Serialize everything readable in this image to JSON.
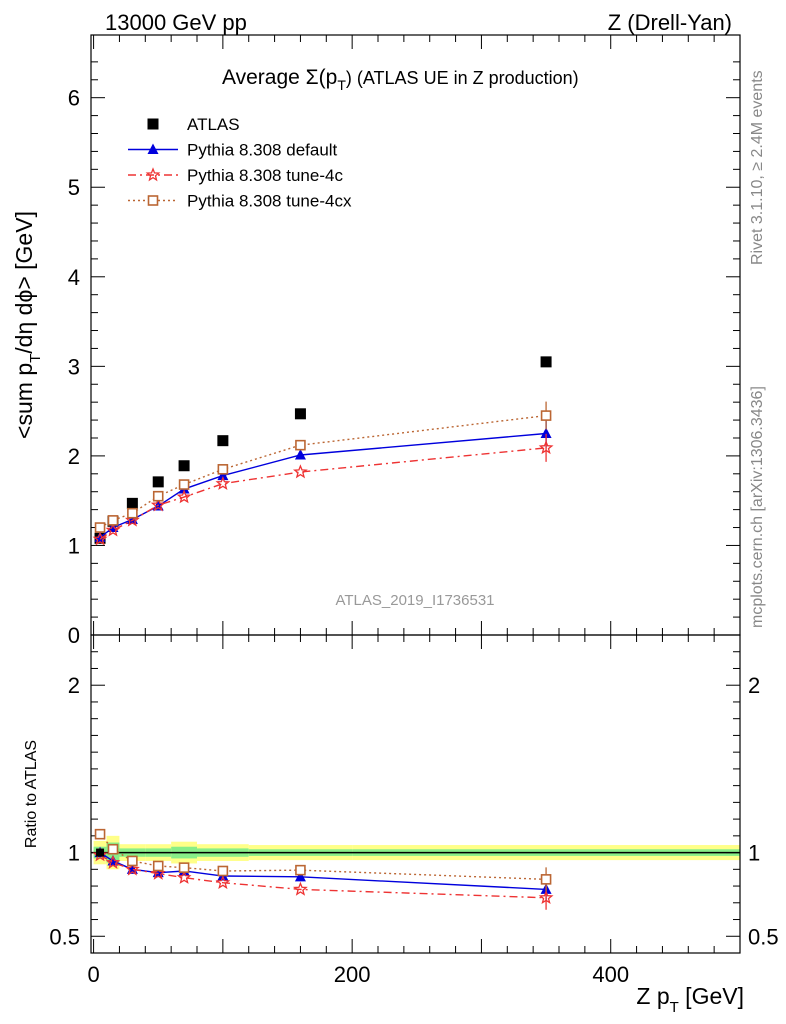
{
  "header": {
    "left": "13000 GeV pp",
    "right": "Z (Drell-Yan)"
  },
  "side": {
    "rivet": "Rivet 3.1.10, ≥ 2.4M events",
    "mcplots": "mcplots.cern.ch [arXiv:1306.3436]"
  },
  "chart_data": {
    "type": "scatter",
    "title": "Average Σ(p_T) (ATLAS UE in Z production)",
    "title_parts": {
      "lead": "Average ",
      "sigma": "Σ(p",
      "sub": "T",
      "tail": ") (ATLAS UE in Z production)"
    },
    "analysis_label": "ATLAS_2019_I1736531",
    "xlabel": "Z p_T [GeV]",
    "xlabel_parts": {
      "lead": "Z p",
      "sub": "T",
      "tail": " [GeV]"
    },
    "ylabel": "<sum p_T/dη dϕ> [GeV]",
    "ylabel_parts": {
      "lead": "<sum p",
      "sub": "T",
      "tail": "/dη dϕ> [GeV]"
    },
    "ratio_ylabel": "Ratio to ATLAS",
    "xlim": [
      -2,
      500
    ],
    "ylim": [
      0,
      6.7
    ],
    "ratio_ylim": [
      0.4,
      2.3
    ],
    "xticks": [
      "0",
      "200",
      "400"
    ],
    "yticks": [
      "0",
      "1",
      "2",
      "3",
      "4",
      "5",
      "6"
    ],
    "ratio_yticks": [
      "0.5",
      "1",
      "2"
    ],
    "legend_position": "top-left",
    "x": [
      5,
      15,
      30,
      50,
      70,
      100,
      160,
      350
    ],
    "xerr": [
      5,
      5,
      10,
      10,
      10,
      20,
      40,
      150
    ],
    "series": [
      {
        "name": "ATLAS",
        "color": "#000000",
        "marker": "square",
        "values": [
          1.08,
          1.27,
          1.47,
          1.71,
          1.89,
          2.17,
          2.47,
          3.05
        ]
      },
      {
        "name": "Pythia 8.308 default",
        "color": "#0000dd",
        "marker": "triangle",
        "values": [
          1.09,
          1.2,
          1.29,
          1.44,
          1.63,
          1.78,
          2.01,
          2.25
        ]
      },
      {
        "name": "Pythia 8.308 tune-4c",
        "color": "#ee3333",
        "marker": "star",
        "values": [
          1.07,
          1.17,
          1.28,
          1.45,
          1.54,
          1.69,
          1.82,
          2.09
        ]
      },
      {
        "name": "Pythia 8.308 tune-4cx",
        "color": "#bb6633",
        "marker": "open-square",
        "values": [
          1.2,
          1.28,
          1.36,
          1.55,
          1.68,
          1.85,
          2.12,
          2.45
        ]
      }
    ],
    "ratio": [
      {
        "name": "Pythia 8.308 default",
        "values": [
          1.0,
          0.95,
          0.9,
          0.88,
          0.89,
          0.86,
          0.855,
          0.78
        ]
      },
      {
        "name": "Pythia 8.308 tune-4c",
        "values": [
          0.985,
          0.94,
          0.9,
          0.875,
          0.85,
          0.82,
          0.78,
          0.73
        ]
      },
      {
        "name": "Pythia 8.308 tune-4cx",
        "values": [
          1.11,
          1.02,
          0.95,
          0.92,
          0.91,
          0.89,
          0.895,
          0.84
        ]
      }
    ]
  }
}
